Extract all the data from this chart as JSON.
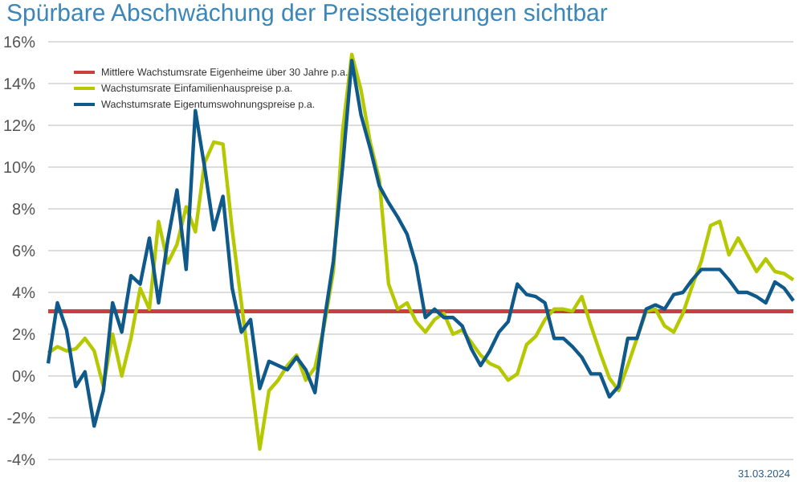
{
  "chart_data": {
    "type": "line",
    "title": "Spürbare Abschwächung der Preissteigerungen sichtbar",
    "annotations": [
      "31.03.2024"
    ],
    "categories": [
      null,
      null,
      null,
      null,
      null,
      null,
      null,
      null,
      null,
      null,
      null,
      null,
      null,
      null,
      null,
      null,
      null,
      null,
      null,
      null,
      null,
      null,
      null,
      null,
      null,
      null,
      null,
      null,
      null,
      null,
      null,
      null,
      null,
      null,
      null,
      null,
      null,
      null,
      null,
      null,
      null,
      null,
      null,
      null,
      null,
      null,
      null,
      null,
      null,
      null,
      null,
      null,
      null,
      null,
      null,
      null,
      null,
      null,
      null,
      null,
      null,
      null,
      null,
      null,
      null,
      null,
      null,
      null,
      null,
      null,
      null,
      null,
      null,
      null,
      null,
      null,
      null,
      null,
      null,
      null,
      null,
      null
    ],
    "series": [
      {
        "name": "Wachstumsrate Einfamilienhauspreise p.a.",
        "color": "#b5c800",
        "values": [
          1.1,
          1.4,
          1.2,
          1.3,
          1.8,
          1.2,
          -0.5,
          2.0,
          0.0,
          1.8,
          4.2,
          3.2,
          7.4,
          5.4,
          6.3,
          8.1,
          6.9,
          10.2,
          11.2,
          11.1,
          7.0,
          3.5,
          0.0,
          -3.5,
          -0.7,
          -0.2,
          0.5,
          1.0,
          -0.2,
          0.4,
          2.4,
          5.0,
          11.7,
          15.4,
          13.7,
          11.2,
          9.4,
          4.4,
          3.2,
          3.5,
          2.6,
          2.1,
          2.7,
          3.0,
          2.0,
          2.2,
          1.6,
          1.0,
          0.6,
          0.4,
          -0.2,
          0.1,
          1.5,
          1.9,
          2.7,
          3.2,
          3.2,
          3.1,
          3.8,
          2.4,
          1.1,
          -0.1,
          -0.7,
          0.5,
          1.8,
          3.1,
          3.2,
          2.4,
          2.1,
          3.0,
          4.3,
          5.5,
          7.2,
          7.4,
          5.8,
          6.6,
          5.8,
          5.0,
          5.6,
          5.0,
          4.9,
          4.6
        ]
      },
      {
        "name": "Wachstumsrate Eigentumswohnungspreise p.a.",
        "color": "#0f5a8a",
        "values": [
          0.6,
          3.5,
          2.2,
          -0.5,
          0.2,
          -2.4,
          -0.7,
          3.5,
          2.1,
          4.8,
          4.4,
          6.6,
          3.5,
          6.5,
          8.9,
          5.1,
          12.7,
          10.0,
          7.0,
          8.6,
          4.2,
          2.1,
          2.7,
          -0.6,
          0.7,
          0.5,
          0.3,
          0.9,
          0.3,
          -0.8,
          2.6,
          5.5,
          10.0,
          15.1,
          12.5,
          10.9,
          9.1,
          8.3,
          7.6,
          6.8,
          5.3,
          2.8,
          3.2,
          2.8,
          2.8,
          2.4,
          1.3,
          0.5,
          1.2,
          2.1,
          2.6,
          4.4,
          3.9,
          3.8,
          3.5,
          1.8,
          1.8,
          1.4,
          0.9,
          0.1,
          0.1,
          -1.0,
          -0.5,
          1.8,
          1.8,
          3.2,
          3.4,
          3.2,
          3.9,
          4.0,
          4.6,
          5.1,
          5.1,
          5.1,
          4.6,
          4.0,
          4.0,
          3.8,
          3.5,
          4.5,
          4.2,
          3.6
        ]
      }
    ],
    "ref_lines": [
      {
        "axis": "y",
        "value": 3.1,
        "label": "Mittlere Wachstumsrate Eigenheime über 30 Jahre p.a.",
        "color": "#c8403f"
      }
    ],
    "ylim": [
      -4,
      16
    ],
    "yticks": [
      {
        "value": -4,
        "label": "-4%"
      },
      {
        "value": -2,
        "label": "-2%"
      },
      {
        "value": 0,
        "label": "0%"
      },
      {
        "value": 2,
        "label": "2%"
      },
      {
        "value": 4,
        "label": "4%"
      },
      {
        "value": 6,
        "label": "6%"
      },
      {
        "value": 8,
        "label": "8%"
      },
      {
        "value": 10,
        "label": "10%"
      },
      {
        "value": 12,
        "label": "12%"
      },
      {
        "value": 14,
        "label": "14%"
      },
      {
        "value": 16,
        "label": "16%"
      }
    ],
    "grid": "y",
    "legend": "top left",
    "tick_labels": "y",
    "marker": "none",
    "line_style": "solid"
  }
}
